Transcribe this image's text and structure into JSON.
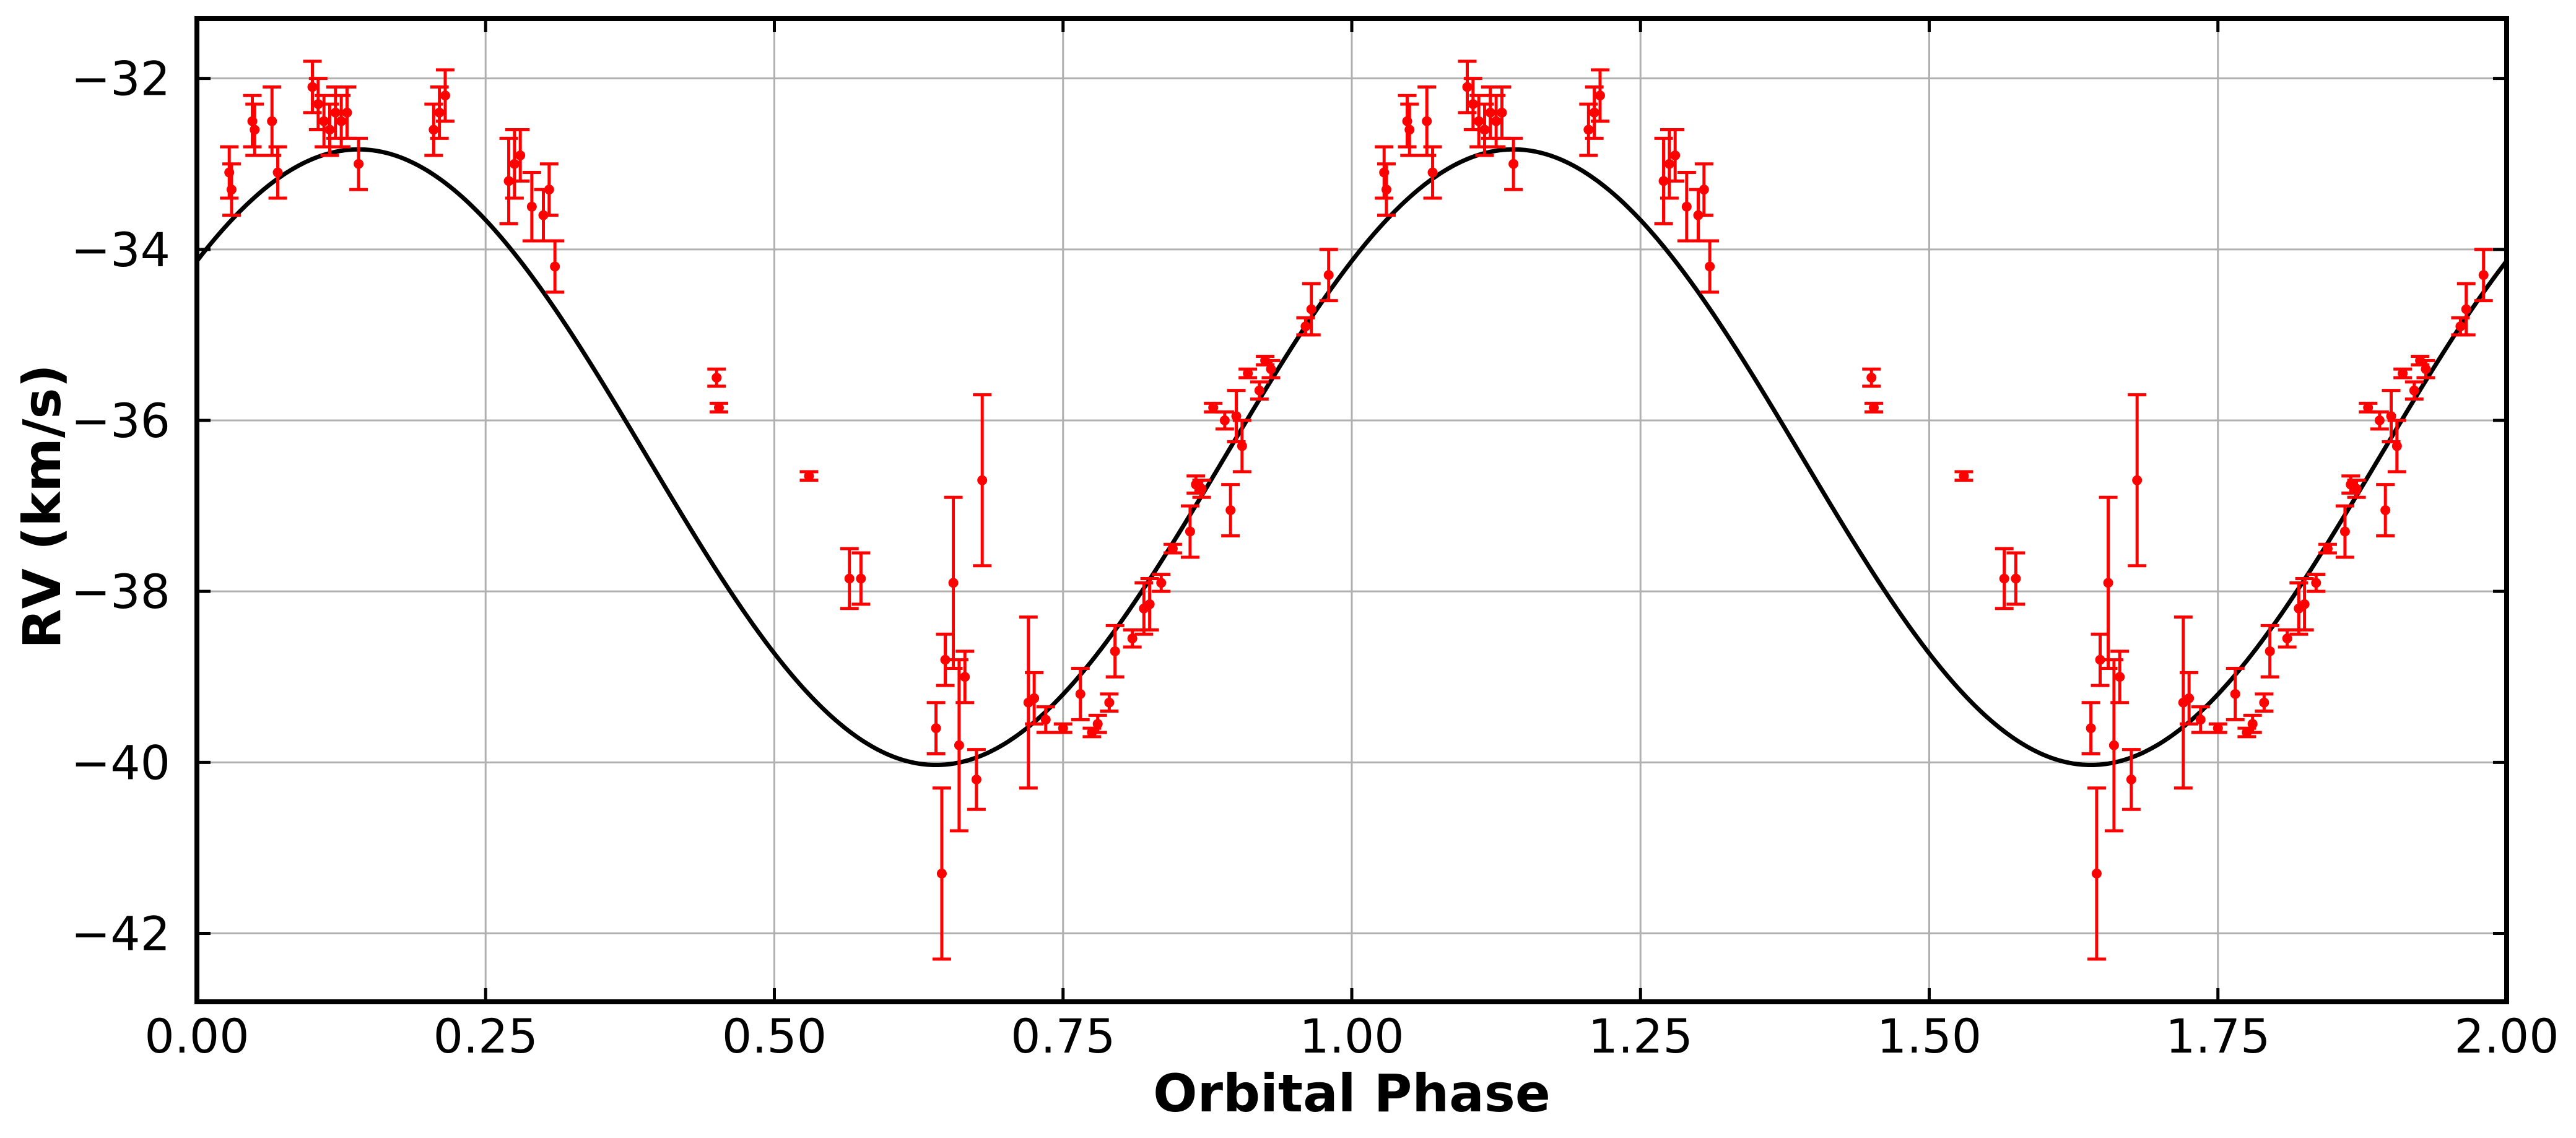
{
  "chart_data": {
    "type": "scatter",
    "title": "",
    "xlabel": "Orbital Phase",
    "ylabel": "RV (km/s)",
    "xlim": [
      0.0,
      2.0
    ],
    "ylim": [
      -42.8,
      -31.3
    ],
    "x_ticks": [
      0.0,
      0.25,
      0.5,
      0.75,
      1.0,
      1.25,
      1.5,
      1.75,
      2.0
    ],
    "x_tick_labels": [
      "0.00",
      "0.25",
      "0.50",
      "0.75",
      "1.00",
      "1.25",
      "1.50",
      "1.75",
      "2.00"
    ],
    "y_ticks": [
      -42,
      -40,
      -38,
      -36,
      -34,
      -32
    ],
    "y_tick_labels": [
      "−42",
      "−40",
      "−38",
      "−36",
      "−34",
      "−32"
    ],
    "grid": true,
    "colors": {
      "data": "#ff0000",
      "model": "#000000",
      "grid": "#b0b0b0",
      "axes": "#000000"
    },
    "model_curve": {
      "description_type": "sinusoid",
      "gamma": -36.43,
      "semi_amplitude": 3.6,
      "phase_of_max": 0.14,
      "period_in_phase": 1.0
    },
    "observations": {
      "phase": [
        0.028,
        0.03,
        0.048,
        0.05,
        0.065,
        0.07,
        0.1,
        0.105,
        0.11,
        0.115,
        0.12,
        0.125,
        0.13,
        0.14,
        0.205,
        0.21,
        0.215,
        0.27,
        0.275,
        0.28,
        0.29,
        0.3,
        0.305,
        0.31,
        0.45,
        0.452,
        0.53,
        0.565,
        0.575,
        0.64,
        0.645,
        0.648,
        0.655,
        0.66,
        0.665,
        0.675,
        0.68,
        0.72,
        0.725,
        0.735,
        0.75,
        0.765,
        0.775,
        0.78,
        0.79,
        0.795,
        0.81,
        0.82,
        0.825,
        0.835,
        0.845,
        0.86,
        0.865,
        0.87,
        0.88,
        0.89,
        0.895,
        0.9,
        0.905,
        0.91,
        0.92,
        0.925,
        0.93,
        0.96,
        0.965,
        0.98
      ],
      "rv": [
        -33.1,
        -33.3,
        -32.5,
        -32.6,
        -32.5,
        -33.1,
        -32.1,
        -32.3,
        -32.5,
        -32.6,
        -32.4,
        -32.5,
        -32.4,
        -33.0,
        -32.6,
        -32.4,
        -32.2,
        -33.2,
        -33.0,
        -32.9,
        -33.5,
        -33.6,
        -33.3,
        -34.2,
        -35.5,
        -35.85,
        -36.65,
        -37.85,
        -37.85,
        -39.6,
        -41.3,
        -38.8,
        -37.9,
        -39.8,
        -39.0,
        -40.2,
        -36.7,
        -39.3,
        -39.25,
        -39.5,
        -39.6,
        -39.2,
        -39.65,
        -39.55,
        -39.3,
        -38.7,
        -38.55,
        -38.2,
        -38.15,
        -37.9,
        -37.5,
        -37.3,
        -36.75,
        -36.8,
        -35.85,
        -36.0,
        -37.05,
        -35.95,
        -36.3,
        -35.45,
        -35.65,
        -35.3,
        -35.4,
        -34.9,
        -34.7,
        -34.3
      ],
      "error": [
        0.3,
        0.3,
        0.3,
        0.3,
        0.4,
        0.3,
        0.3,
        0.3,
        0.3,
        0.3,
        0.3,
        0.3,
        0.3,
        0.3,
        0.3,
        0.3,
        0.3,
        0.5,
        0.4,
        0.3,
        0.4,
        0.3,
        0.3,
        0.3,
        0.1,
        0.05,
        0.05,
        0.35,
        0.3,
        0.3,
        1.0,
        0.3,
        1.0,
        1.0,
        0.3,
        0.35,
        1.0,
        1.0,
        0.3,
        0.15,
        0.05,
        0.3,
        0.05,
        0.1,
        0.1,
        0.3,
        0.1,
        0.3,
        0.3,
        0.1,
        0.05,
        0.3,
        0.1,
        0.1,
        0.05,
        0.1,
        0.3,
        0.3,
        0.3,
        0.05,
        0.1,
        0.05,
        0.1,
        0.1,
        0.3,
        0.3
      ]
    }
  }
}
